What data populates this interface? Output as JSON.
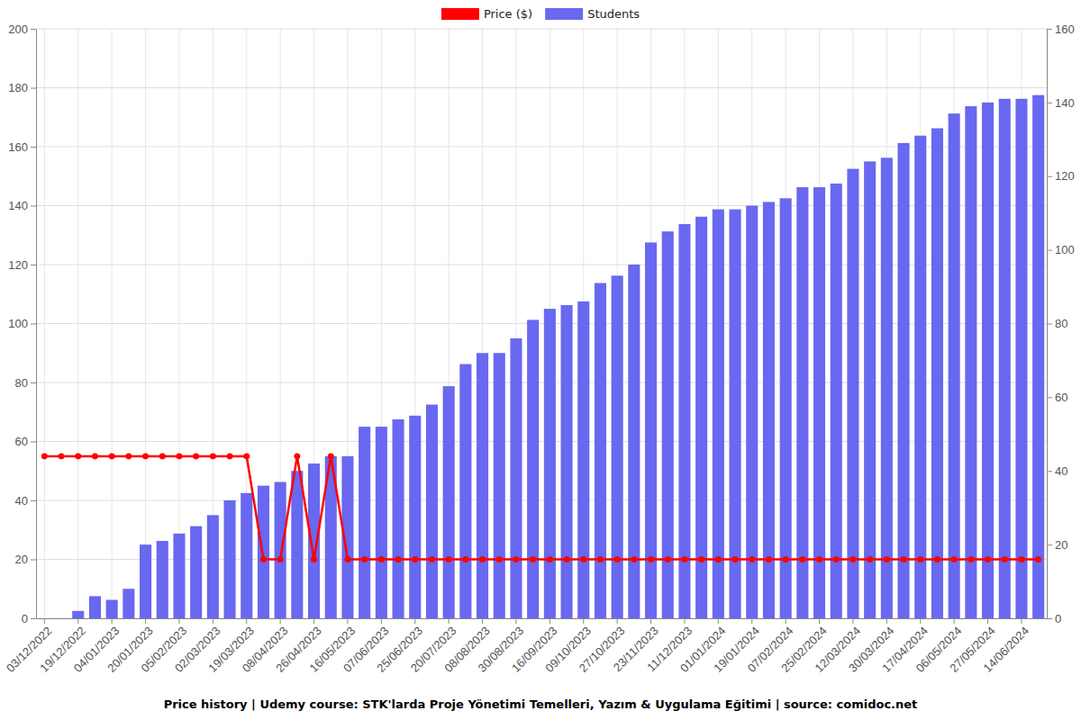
{
  "chart_data": {
    "type": "bar",
    "title": "Price history | Udemy course: STK'larda Proje Yönetimi Temelleri, Yazım & Uygulama Eğitimi | source: comidoc.net",
    "categories": [
      "03/12/2022",
      null,
      "19/12/2022",
      null,
      "04/01/2023",
      null,
      "20/01/2023",
      null,
      "05/02/2023",
      null,
      "02/03/2023",
      null,
      "19/03/2023",
      null,
      "08/04/2023",
      null,
      "26/04/2023",
      null,
      "16/05/2023",
      null,
      "07/06/2023",
      null,
      "25/06/2023",
      null,
      "20/07/2023",
      null,
      "08/08/2023",
      null,
      "30/08/2023",
      null,
      "16/09/2023",
      null,
      "09/10/2023",
      null,
      "27/10/2023",
      null,
      "23/11/2023",
      null,
      "11/12/2023",
      null,
      "01/01/2024",
      null,
      "19/01/2024",
      null,
      "07/02/2024",
      null,
      "25/02/2024",
      null,
      "12/03/2024",
      null,
      "30/03/2024",
      null,
      "17/04/2024",
      null,
      "06/05/2024",
      null,
      "27/05/2024",
      null,
      "14/06/2024",
      null
    ],
    "series": [
      {
        "name": "Price ($)",
        "type": "line",
        "color": "#ff0000",
        "marker": "circle",
        "values": [
          54.99,
          54.99,
          54.99,
          54.99,
          54.99,
          54.99,
          54.99,
          54.99,
          54.99,
          54.99,
          54.99,
          54.99,
          54.99,
          19.99,
          19.99,
          54.99,
          19.99,
          54.99,
          19.99,
          19.99,
          19.99,
          19.99,
          19.99,
          19.99,
          19.99,
          19.99,
          19.99,
          19.99,
          19.99,
          19.99,
          19.99,
          19.99,
          19.99,
          19.99,
          19.99,
          19.99,
          19.99,
          19.99,
          19.99,
          19.99,
          19.99,
          19.99,
          19.99,
          19.99,
          19.99,
          19.99,
          19.99,
          19.99,
          19.99,
          19.99,
          19.99,
          19.99,
          19.99,
          19.99,
          19.99,
          19.99,
          19.99,
          19.99,
          19.99,
          19.99
        ]
      },
      {
        "name": "Students",
        "type": "bar",
        "color": "#6868f0",
        "axis": "y2",
        "values": [
          0,
          0,
          2,
          6,
          5,
          8,
          20,
          21,
          23,
          25,
          28,
          32,
          34,
          36,
          37,
          40,
          42,
          44,
          44,
          52,
          52,
          54,
          55,
          58,
          63,
          69,
          72,
          72,
          76,
          81,
          84,
          85,
          86,
          91,
          93,
          96,
          102,
          105,
          107,
          109,
          111,
          111,
          112,
          113,
          114,
          117,
          117,
          118,
          122,
          124,
          125,
          129,
          131,
          133,
          137,
          139,
          140,
          141,
          141,
          142
        ]
      }
    ],
    "ylim": [
      0,
      200
    ],
    "yticks": [
      0,
      20,
      40,
      60,
      80,
      100,
      120,
      140,
      160,
      180,
      200
    ],
    "y2lim": [
      0,
      160
    ],
    "y2ticks": [
      0,
      20,
      40,
      60,
      80,
      100,
      120,
      140,
      160
    ],
    "grid": true,
    "legend": "top"
  }
}
